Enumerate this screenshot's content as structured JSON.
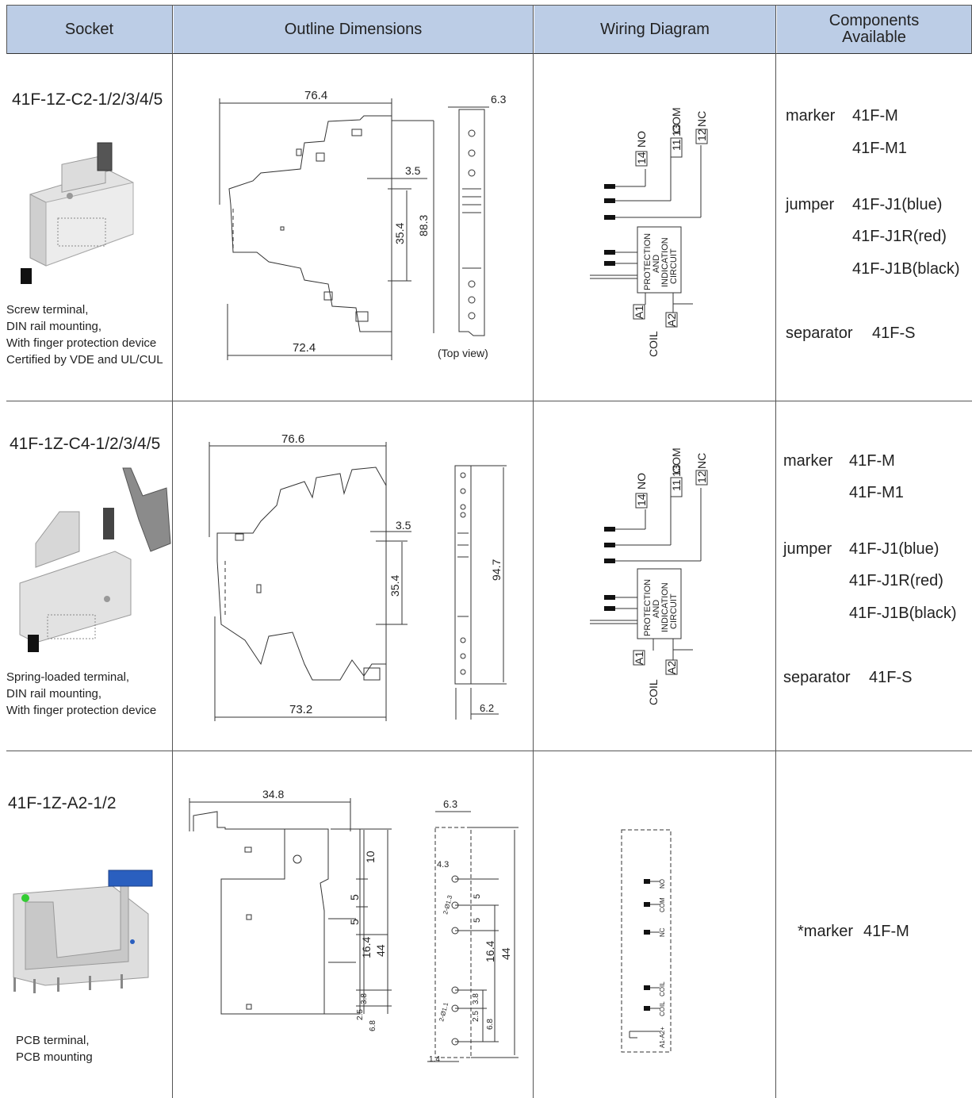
{
  "headers": {
    "socket": "Socket",
    "outline": "Outline Dimensions",
    "wiring": "Wiring Diagram",
    "components": "Components\nAvailable"
  },
  "rows": [
    {
      "model": "41F-1Z-C2-1/2/3/4/5",
      "description": "Screw terminal,\nDIN rail mounting,\nWith finger protection device\nCertified by VDE and UL/CUL",
      "dims": {
        "d1": "76.4",
        "d2": "6.3",
        "d3": "3.5",
        "d4": "35.4",
        "d5": "88.3",
        "d6": "72.4",
        "note": "(Top view)"
      },
      "wiring": {
        "no": "14",
        "no_label": "NO",
        "com": "11",
        "com2": "13",
        "com_label": "COM",
        "nc": "12",
        "nc_label": "NC",
        "circuit": [
          "PROTECTION",
          "AND",
          "INDICATION",
          "CIRCUIT"
        ],
        "a1": "A1",
        "a2": "A2",
        "coil": "COIL"
      },
      "components": [
        {
          "label": "marker",
          "value": "41F-M"
        },
        {
          "label": "",
          "value": "41F-M1"
        },
        {
          "label": "jumper",
          "value": "41F-J1(blue)"
        },
        {
          "label": "",
          "value": "41F-J1R(red)"
        },
        {
          "label": "",
          "value": "41F-J1B(black)"
        },
        {
          "label": "separator",
          "value": "41F-S"
        }
      ]
    },
    {
      "model": "41F-1Z-C4-1/2/3/4/5",
      "description": "Spring-loaded terminal,\nDIN rail mounting,\nWith finger protection device",
      "dims": {
        "d1": "76.6",
        "d3": "3.5",
        "d4": "35.4",
        "d5": "94.7",
        "d6": "73.2",
        "d2": "6.2"
      },
      "wiring": {
        "no": "14",
        "no_label": "NO",
        "com": "11",
        "com2": "13",
        "com_label": "COM",
        "nc": "12",
        "nc_label": "NC",
        "circuit": [
          "PROTECTION",
          "AND",
          "INDICATION",
          "CIRCUIT"
        ],
        "a1": "A1",
        "a2": "A2",
        "coil": "COIL"
      },
      "components": [
        {
          "label": "marker",
          "value": "41F-M"
        },
        {
          "label": "",
          "value": "41F-M1"
        },
        {
          "label": "jumper",
          "value": "41F-J1(blue)"
        },
        {
          "label": "",
          "value": "41F-J1R(red)"
        },
        {
          "label": "",
          "value": "41F-J1B(black)"
        },
        {
          "label": "separator",
          "value": "41F-S"
        }
      ]
    },
    {
      "model": "41F-1Z-A2-1/2",
      "description": "PCB terminal,\nPCB mounting",
      "dims": {
        "d1": "34.8",
        "d2": "6.3",
        "h10": "10",
        "h5a": "5",
        "h5b": "5",
        "h164": "16.4",
        "h44": "44",
        "h38": "3.8",
        "h25": "2.5",
        "h68": "6.8",
        "s43": "4.3",
        "s5a": "5",
        "s5b": "5",
        "s164": "16.4",
        "s44": "44",
        "s38": "3.8",
        "s25": "2.5",
        "s68": "6.8",
        "s14": "1.4",
        "hole1": "2-Ø1.3",
        "hole2": "2-Ø1.1"
      },
      "wiring": {
        "pins": [
          "NO",
          "COM",
          "NC",
          "COIL",
          "COIL",
          "A1-A2+"
        ]
      },
      "components": [
        {
          "label": "*marker",
          "value": "41F-M"
        }
      ]
    }
  ]
}
